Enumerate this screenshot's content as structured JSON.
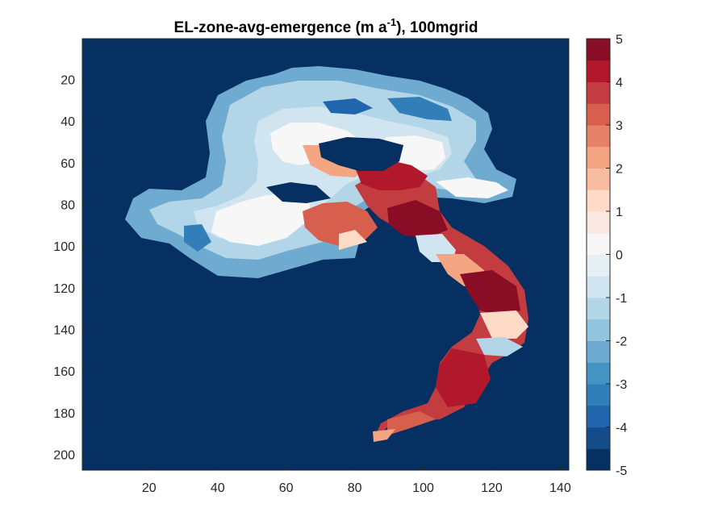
{
  "chart_data": {
    "type": "heatmap",
    "title": {
      "prefix": "EL-zone-avg-emergence (m a",
      "superscript": "-1",
      "suffix": "), 100mgrid"
    },
    "xlabel": "",
    "ylabel": "",
    "x_ticks": [
      "20",
      "40",
      "60",
      "80",
      "100",
      "120",
      "140"
    ],
    "y_ticks": [
      "20",
      "40",
      "60",
      "80",
      "100",
      "120",
      "140",
      "160",
      "180",
      "200"
    ],
    "xlim": [
      0.5,
      142.5
    ],
    "ylim": [
      0.5,
      207.5
    ],
    "y_reversed": true,
    "colorbar": {
      "range": [
        -5,
        5
      ],
      "levels": 20,
      "ticks": [
        "-5",
        "-4",
        "-3",
        "-2",
        "-1",
        "0",
        "1",
        "2",
        "3",
        "4",
        "5"
      ],
      "colors": [
        "#053061",
        "#134c88",
        "#2166ac",
        "#327eb9",
        "#4393c3",
        "#6fabd0",
        "#92c5de",
        "#b2d5e7",
        "#d1e5f0",
        "#e5eff4",
        "#f7f7f7",
        "#f9e8df",
        "#fddbc7",
        "#f8bda1",
        "#f4a582",
        "#e58267",
        "#d6604d",
        "#c33c3f",
        "#b2182b",
        "#890d25"
      ]
    },
    "background_value": -5
  }
}
